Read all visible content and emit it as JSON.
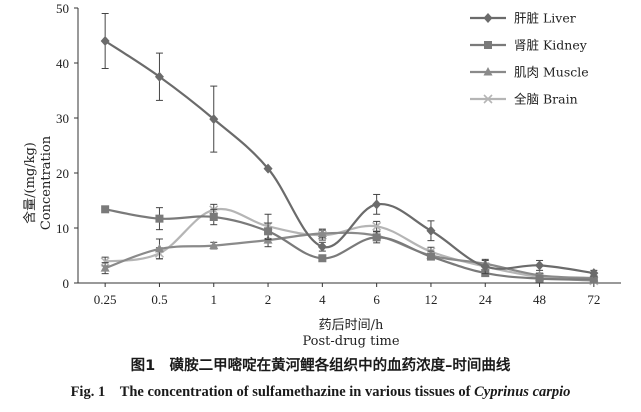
{
  "chart_data": {
    "type": "line",
    "categories": [
      "0.25",
      "0.5",
      "1",
      "2",
      "4",
      "6",
      "12",
      "24",
      "48",
      "72"
    ],
    "ylim": [
      0,
      50
    ],
    "yticks": [
      0,
      10,
      20,
      30,
      40,
      50
    ],
    "ylabel_cn": "含量/(mg/kg)",
    "ylabel_en": "Concentration",
    "xlabel_cn": "药后时间/h",
    "xlabel_en": "Post-drug time",
    "legend_position": "top-right",
    "grid": false,
    "series": [
      {
        "name": "肝脏 Liver",
        "marker": "diamond",
        "color": "#6b6b6b",
        "values": [
          44.0,
          37.5,
          29.8,
          20.8,
          6.6,
          14.3,
          9.5,
          3.0,
          3.2,
          1.8
        ],
        "errors": [
          5.0,
          4.3,
          6.0,
          0,
          0.8,
          1.8,
          1.8,
          1.3,
          0.9,
          0.5
        ]
      },
      {
        "name": "肾脏 Kidney",
        "marker": "square",
        "color": "#7a7a7a",
        "values": [
          13.4,
          11.7,
          12.0,
          9.4,
          4.5,
          8.3,
          4.8,
          1.8,
          0.8,
          0.6
        ],
        "errors": [
          0,
          2.0,
          1.4,
          1.5,
          0,
          1.0,
          0.5,
          0.5,
          0.4,
          0.3
        ]
      },
      {
        "name": "肌肉 Muscle",
        "marker": "triangle",
        "color": "#8a8a8a",
        "values": [
          2.7,
          6.2,
          6.8,
          7.8,
          9.0,
          8.6,
          5.0,
          3.5,
          1.4,
          0.9
        ],
        "errors": [
          1.0,
          1.8,
          0.6,
          1.2,
          0.8,
          0.8,
          0.8,
          0.6,
          0.4,
          0.3
        ]
      },
      {
        "name": "全脑 Brain",
        "marker": "x",
        "color": "#b5b5b5",
        "values": [
          3.9,
          5.4,
          13.3,
          10.3,
          8.7,
          10.3,
          5.7,
          3.0,
          1.1,
          0.4
        ],
        "errors": [
          0.8,
          1.0,
          1.0,
          2.2,
          0.9,
          0.9,
          0.8,
          0.6,
          0.4,
          0.3
        ]
      }
    ]
  },
  "caption": {
    "cn": "图1　磺胺二甲嘧啶在黄河鲤各组织中的血药浓度–时间曲线",
    "en_prefix": "Fig. 1　The concentration of sulfamethazine in various tissues of ",
    "en_species": "Cyprinus carpio"
  }
}
